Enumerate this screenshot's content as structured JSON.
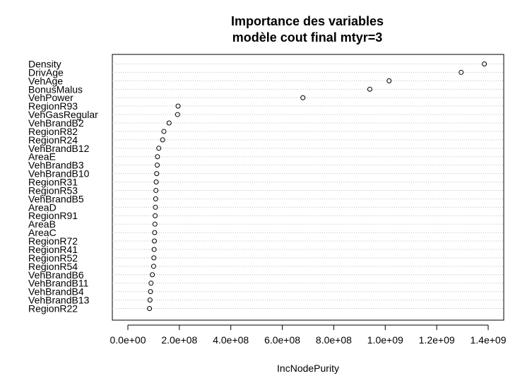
{
  "chart_data": {
    "type": "scatter",
    "subtype": "dotchart",
    "title": "Importance des variables",
    "subtitle": "modèle cout final mtyr=3",
    "xlabel": "IncNodePurity",
    "ylabel": "",
    "xlim": [
      0,
      1400000000
    ],
    "xticks": [
      0,
      200000000,
      400000000,
      600000000,
      800000000,
      1000000000,
      1200000000,
      1400000000
    ],
    "xtick_labels": [
      "0.0e+00",
      "2.0e+08",
      "4.0e+08",
      "6.0e+08",
      "8.0e+08",
      "1.0e+09",
      "1.2e+09",
      "1.4e+09"
    ],
    "grid": "dotted horizontal guide lines",
    "categories": [
      "Density",
      "DrivAge",
      "VehAge",
      "BonusMalus",
      "VehPower",
      "RegionR93",
      "VehGasRegular",
      "VehBrandB2",
      "RegionR82",
      "RegionR24",
      "VehBrandB12",
      "AreaE",
      "VehBrandB3",
      "VehBrandB10",
      "RegionR31",
      "RegionR53",
      "VehBrandB5",
      "AreaD",
      "RegionR91",
      "AreaB",
      "AreaC",
      "RegionR72",
      "RegionR41",
      "RegionR52",
      "RegionR54",
      "VehBrandB6",
      "VehBrandB11",
      "VehBrandB4",
      "VehBrandB13",
      "RegionR22"
    ],
    "values": [
      1385000000,
      1295000000,
      1015000000,
      940000000,
      680000000,
      195000000,
      193000000,
      160000000,
      140000000,
      135000000,
      120000000,
      115000000,
      114000000,
      112000000,
      110000000,
      109000000,
      108000000,
      107000000,
      106000000,
      105000000,
      104000000,
      103000000,
      102000000,
      101000000,
      100000000,
      95000000,
      90000000,
      88000000,
      86000000,
      84000000
    ]
  }
}
